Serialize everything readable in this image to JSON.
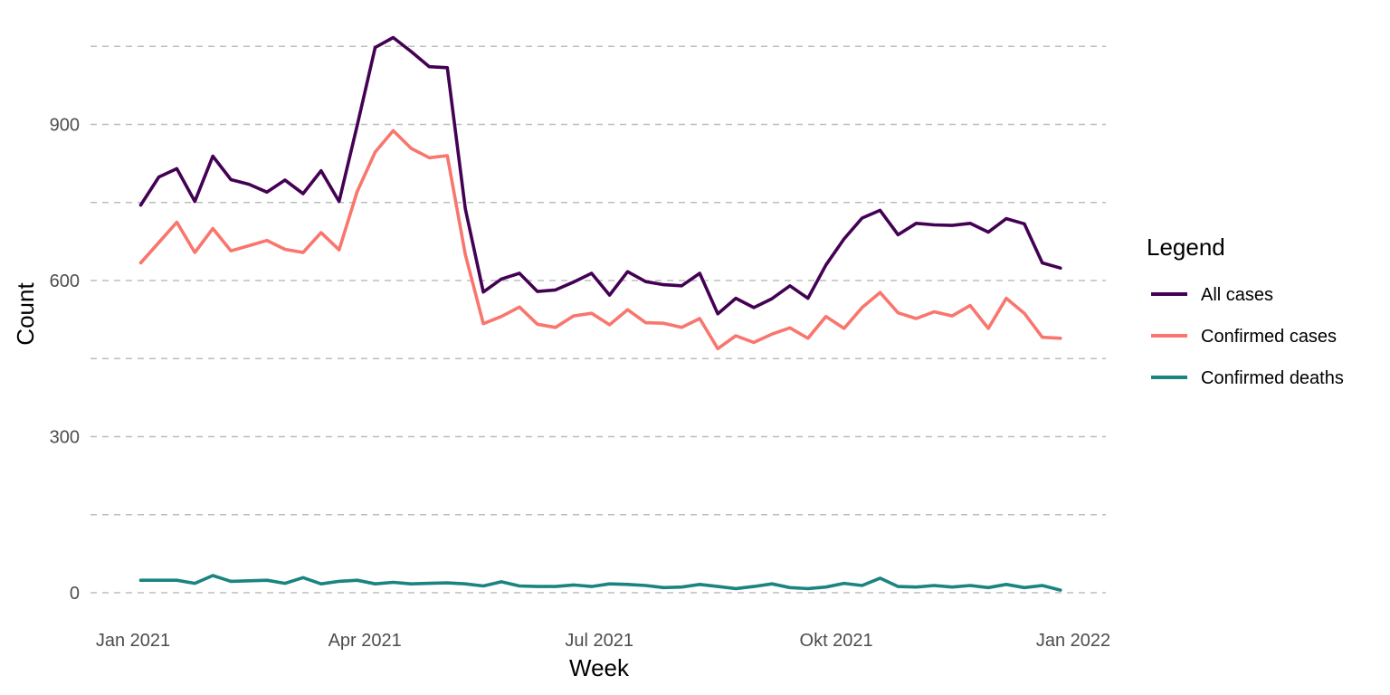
{
  "chart_data": {
    "type": "line",
    "xlabel": "Week",
    "ylabel": "Count",
    "x_tick_labels": [
      {
        "label": "Jan 2021",
        "date": "2021-01-01"
      },
      {
        "label": "Apr 2021",
        "date": "2021-04-01"
      },
      {
        "label": "Jul 2021",
        "date": "2021-07-01"
      },
      {
        "label": "Okt 2021",
        "date": "2021-10-01"
      },
      {
        "label": "Jan 2022",
        "date": "2022-01-01"
      }
    ],
    "y_ticks": [
      0,
      300,
      600,
      900
    ],
    "y_grid_lines": [
      0,
      150,
      300,
      450,
      600,
      750,
      900,
      1050
    ],
    "ylim": [
      0,
      1065
    ],
    "xlim": [
      "2020-12-31",
      "2022-01-02"
    ],
    "grid": "horizontal dashed",
    "legend": {
      "title": "Legend",
      "position": "right",
      "entries": [
        "All cases",
        "Confirmed cases",
        "Confirmed deaths"
      ]
    },
    "x": [
      "2021-01-04",
      "2021-01-11",
      "2021-01-18",
      "2021-01-25",
      "2021-02-01",
      "2021-02-08",
      "2021-02-15",
      "2021-02-22",
      "2021-03-01",
      "2021-03-08",
      "2021-03-15",
      "2021-03-22",
      "2021-03-29",
      "2021-04-05",
      "2021-04-12",
      "2021-04-19",
      "2021-04-26",
      "2021-05-03",
      "2021-05-10",
      "2021-05-17",
      "2021-05-24",
      "2021-05-31",
      "2021-06-07",
      "2021-06-14",
      "2021-06-21",
      "2021-06-28",
      "2021-07-05",
      "2021-07-12",
      "2021-07-19",
      "2021-07-26",
      "2021-08-02",
      "2021-08-09",
      "2021-08-16",
      "2021-08-23",
      "2021-08-30",
      "2021-09-06",
      "2021-09-13",
      "2021-09-20",
      "2021-09-27",
      "2021-10-04",
      "2021-10-11",
      "2021-10-18",
      "2021-10-25",
      "2021-11-01",
      "2021-11-08",
      "2021-11-15",
      "2021-11-22",
      "2021-11-29",
      "2021-12-06",
      "2021-12-13",
      "2021-12-20",
      "2021-12-27"
    ],
    "series": [
      {
        "name": "All cases",
        "color": "#440154",
        "values": [
          745,
          799,
          815,
          752,
          839,
          794,
          785,
          770,
          793,
          767,
          811,
          752,
          898,
          1048,
          1067,
          1040,
          1011,
          1009,
          738,
          578,
          603,
          614,
          579,
          582,
          597,
          614,
          572,
          617,
          598,
          592,
          590,
          614,
          536,
          566,
          548,
          565,
          590,
          566,
          630,
          680,
          720,
          735,
          688,
          710,
          707,
          706,
          710,
          693,
          719,
          709,
          634,
          624
        ]
      },
      {
        "name": "Confirmed cases",
        "color": "#F8766D",
        "values": [
          634,
          673,
          712,
          654,
          700,
          657,
          667,
          677,
          660,
          654,
          692,
          659,
          771,
          847,
          888,
          854,
          836,
          840,
          650,
          517,
          531,
          549,
          516,
          510,
          532,
          537,
          515,
          544,
          519,
          518,
          510,
          527,
          469,
          494,
          481,
          497,
          509,
          489,
          531,
          508,
          548,
          577,
          538,
          527,
          540,
          532,
          552,
          508,
          566,
          537,
          491,
          489
        ]
      },
      {
        "name": "Confirmed deaths",
        "color": "#1A8480",
        "values": [
          24,
          24,
          24,
          18,
          33,
          22,
          23,
          24,
          18,
          29,
          17,
          22,
          24,
          17,
          20,
          17,
          18,
          19,
          17,
          13,
          21,
          13,
          12,
          12,
          15,
          12,
          17,
          16,
          14,
          10,
          11,
          16,
          12,
          8,
          12,
          17,
          10,
          8,
          11,
          18,
          14,
          28,
          12,
          11,
          14,
          11,
          14,
          10,
          16,
          10,
          14,
          5
        ]
      }
    ]
  }
}
